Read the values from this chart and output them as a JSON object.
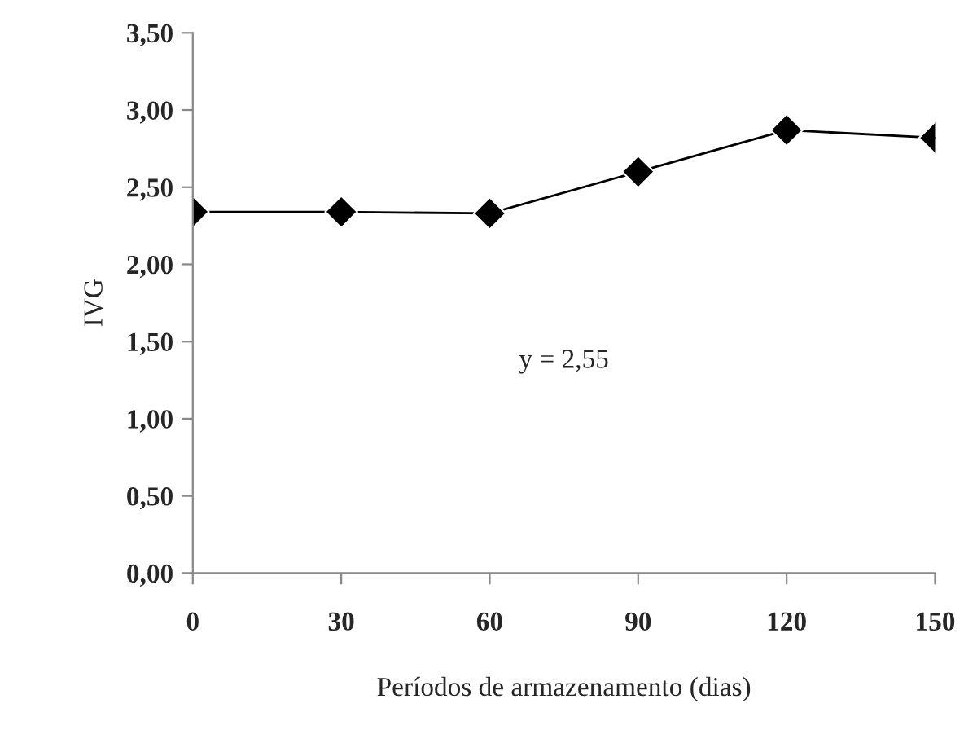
{
  "chart_data": {
    "type": "line",
    "xlabel": "Períodos de armazenamento (dias)",
    "ylabel": "IVG",
    "x": [
      0,
      30,
      60,
      90,
      120,
      150
    ],
    "series": [
      {
        "color": "#000000",
        "values": [
          2.34,
          2.34,
          2.33,
          2.6,
          2.87,
          2.82
        ]
      }
    ],
    "xlim": [
      0,
      150
    ],
    "xticks": [
      0,
      30,
      60,
      90,
      120,
      150
    ],
    "ylim": [
      0,
      3.5
    ],
    "yticks": [
      {
        "value": 0,
        "label": "0,00"
      },
      {
        "value": 0.5,
        "label": "0,50"
      },
      {
        "value": 1,
        "label": "1,00"
      },
      {
        "value": 1.5,
        "label": "1,50"
      },
      {
        "value": 2,
        "label": "2,00"
      },
      {
        "value": 2.5,
        "label": "2,50"
      },
      {
        "value": 3,
        "label": "3,00"
      },
      {
        "value": 3.5,
        "label": "3,50"
      }
    ],
    "annotations": [
      "y = 2,55"
    ],
    "marker": "diamond",
    "line_style": "solid",
    "grid": false,
    "legend": false
  }
}
